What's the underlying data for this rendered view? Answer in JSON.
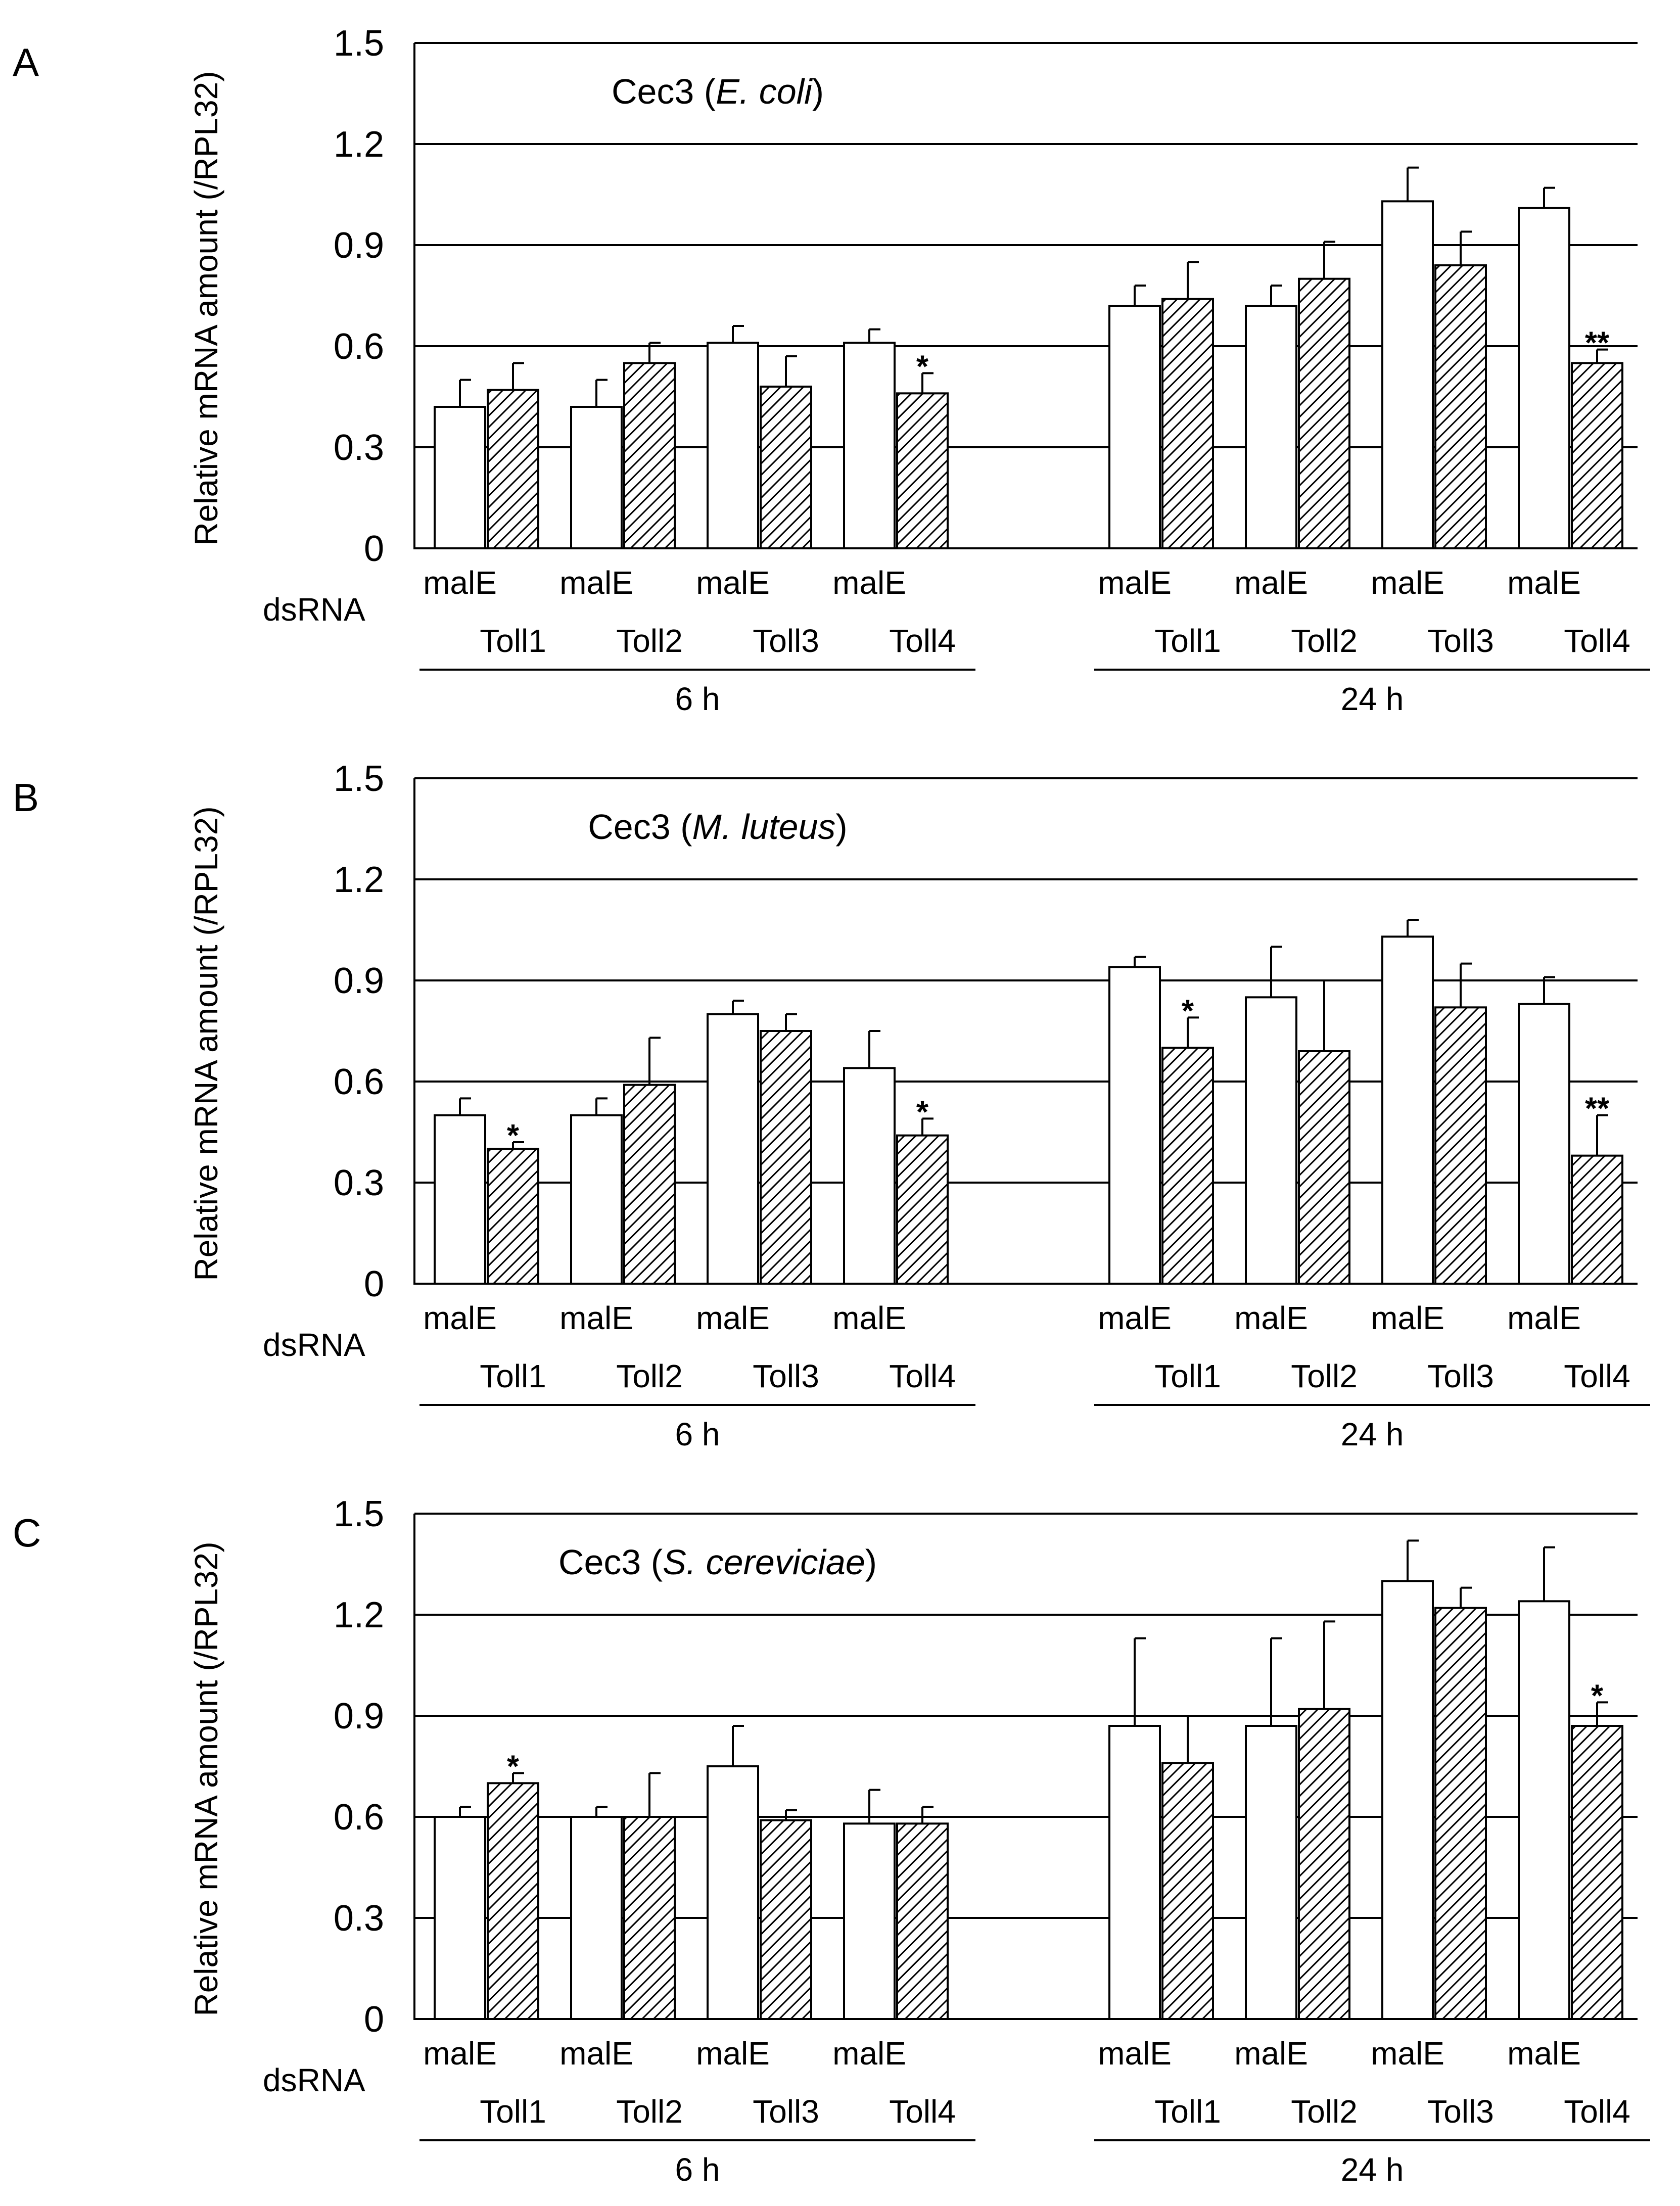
{
  "figure": {
    "dsrna_label": "dsRNA",
    "y_label": "Relative mRNA amount (/RPL32)",
    "timepoints": [
      "6 h",
      "24 h"
    ],
    "control_label": "malE",
    "treatment_labels": [
      "Toll1",
      "Toll2",
      "Toll3",
      "Toll4"
    ]
  },
  "chart_data": [
    {
      "type": "bar",
      "panel_letter": "A",
      "title_prefix": "Cec3 (",
      "title_species": "E. coli",
      "title_suffix": ")",
      "ylabel": "Relative mRNA amount (/RPL32)",
      "ylim": [
        0,
        1.5
      ],
      "yticks": [
        0,
        0.3,
        0.6,
        0.9,
        1.2,
        1.5
      ],
      "grid": true,
      "groups": [
        {
          "time": "6 h",
          "pairs": [
            {
              "control": "malE",
              "treatment": "Toll1",
              "control_value": 0.42,
              "control_error": 0.08,
              "treatment_value": 0.47,
              "treatment_error": 0.08,
              "sig": ""
            },
            {
              "control": "malE",
              "treatment": "Toll2",
              "control_value": 0.42,
              "control_error": 0.08,
              "treatment_value": 0.55,
              "treatment_error": 0.06,
              "sig": ""
            },
            {
              "control": "malE",
              "treatment": "Toll3",
              "control_value": 0.61,
              "control_error": 0.05,
              "treatment_value": 0.48,
              "treatment_error": 0.09,
              "sig": ""
            },
            {
              "control": "malE",
              "treatment": "Toll4",
              "control_value": 0.61,
              "control_error": 0.04,
              "treatment_value": 0.46,
              "treatment_error": 0.06,
              "sig": "*"
            }
          ]
        },
        {
          "time": "24 h",
          "pairs": [
            {
              "control": "malE",
              "treatment": "Toll1",
              "control_value": 0.72,
              "control_error": 0.06,
              "treatment_value": 0.74,
              "treatment_error": 0.11,
              "sig": ""
            },
            {
              "control": "malE",
              "treatment": "Toll2",
              "control_value": 0.72,
              "control_error": 0.06,
              "treatment_value": 0.8,
              "treatment_error": 0.11,
              "sig": ""
            },
            {
              "control": "malE",
              "treatment": "Toll3",
              "control_value": 1.03,
              "control_error": 0.1,
              "treatment_value": 0.84,
              "treatment_error": 0.1,
              "sig": ""
            },
            {
              "control": "malE",
              "treatment": "Toll4",
              "control_value": 1.01,
              "control_error": 0.06,
              "treatment_value": 0.55,
              "treatment_error": 0.04,
              "sig": "**"
            }
          ]
        }
      ]
    },
    {
      "type": "bar",
      "panel_letter": "B",
      "title_prefix": "Cec3 (",
      "title_species": "M. luteus",
      "title_suffix": ")",
      "ylabel": "Relative mRNA amount (/RPL32)",
      "ylim": [
        0,
        1.5
      ],
      "yticks": [
        0,
        0.3,
        0.6,
        0.9,
        1.2,
        1.5
      ],
      "grid": true,
      "groups": [
        {
          "time": "6 h",
          "pairs": [
            {
              "control": "malE",
              "treatment": "Toll1",
              "control_value": 0.5,
              "control_error": 0.05,
              "treatment_value": 0.4,
              "treatment_error": 0.02,
              "sig": "*"
            },
            {
              "control": "malE",
              "treatment": "Toll2",
              "control_value": 0.5,
              "control_error": 0.05,
              "treatment_value": 0.59,
              "treatment_error": 0.14,
              "sig": ""
            },
            {
              "control": "malE",
              "treatment": "Toll3",
              "control_value": 0.8,
              "control_error": 0.04,
              "treatment_value": 0.75,
              "treatment_error": 0.05,
              "sig": ""
            },
            {
              "control": "malE",
              "treatment": "Toll4",
              "control_value": 0.64,
              "control_error": 0.11,
              "treatment_value": 0.44,
              "treatment_error": 0.05,
              "sig": "*"
            }
          ]
        },
        {
          "time": "24 h",
          "pairs": [
            {
              "control": "malE",
              "treatment": "Toll1",
              "control_value": 0.94,
              "control_error": 0.03,
              "treatment_value": 0.7,
              "treatment_error": 0.09,
              "sig": "*"
            },
            {
              "control": "malE",
              "treatment": "Toll2",
              "control_value": 0.85,
              "control_error": 0.15,
              "treatment_value": 0.69,
              "treatment_error": 0.21,
              "sig": ""
            },
            {
              "control": "malE",
              "treatment": "Toll3",
              "control_value": 1.03,
              "control_error": 0.05,
              "treatment_value": 0.82,
              "treatment_error": 0.13,
              "sig": ""
            },
            {
              "control": "malE",
              "treatment": "Toll4",
              "control_value": 0.83,
              "control_error": 0.08,
              "treatment_value": 0.38,
              "treatment_error": 0.12,
              "sig": "**"
            }
          ]
        }
      ]
    },
    {
      "type": "bar",
      "panel_letter": "C",
      "title_prefix": "Cec3 (",
      "title_species": "S. cereviciae",
      "title_suffix": ")",
      "ylabel": "Relative mRNA amount (/RPL32)",
      "ylim": [
        0,
        1.5
      ],
      "yticks": [
        0,
        0.3,
        0.6,
        0.9,
        1.2,
        1.5
      ],
      "grid": true,
      "groups": [
        {
          "time": "6 h",
          "pairs": [
            {
              "control": "malE",
              "treatment": "Toll1",
              "control_value": 0.6,
              "control_error": 0.03,
              "treatment_value": 0.7,
              "treatment_error": 0.03,
              "sig": "*"
            },
            {
              "control": "malE",
              "treatment": "Toll2",
              "control_value": 0.6,
              "control_error": 0.03,
              "treatment_value": 0.6,
              "treatment_error": 0.13,
              "sig": ""
            },
            {
              "control": "malE",
              "treatment": "Toll3",
              "control_value": 0.75,
              "control_error": 0.12,
              "treatment_value": 0.59,
              "treatment_error": 0.03,
              "sig": ""
            },
            {
              "control": "malE",
              "treatment": "Toll4",
              "control_value": 0.58,
              "control_error": 0.1,
              "treatment_value": 0.58,
              "treatment_error": 0.05,
              "sig": ""
            }
          ]
        },
        {
          "time": "24 h",
          "pairs": [
            {
              "control": "malE",
              "treatment": "Toll1",
              "control_value": 0.87,
              "control_error": 0.26,
              "treatment_value": 0.76,
              "treatment_error": 0.14,
              "sig": ""
            },
            {
              "control": "malE",
              "treatment": "Toll2",
              "control_value": 0.87,
              "control_error": 0.26,
              "treatment_value": 0.92,
              "treatment_error": 0.26,
              "sig": ""
            },
            {
              "control": "malE",
              "treatment": "Toll3",
              "control_value": 1.3,
              "control_error": 0.12,
              "treatment_value": 1.22,
              "treatment_error": 0.06,
              "sig": ""
            },
            {
              "control": "malE",
              "treatment": "Toll4",
              "control_value": 1.24,
              "control_error": 0.16,
              "treatment_value": 0.87,
              "treatment_error": 0.07,
              "sig": "*"
            }
          ]
        }
      ]
    }
  ]
}
